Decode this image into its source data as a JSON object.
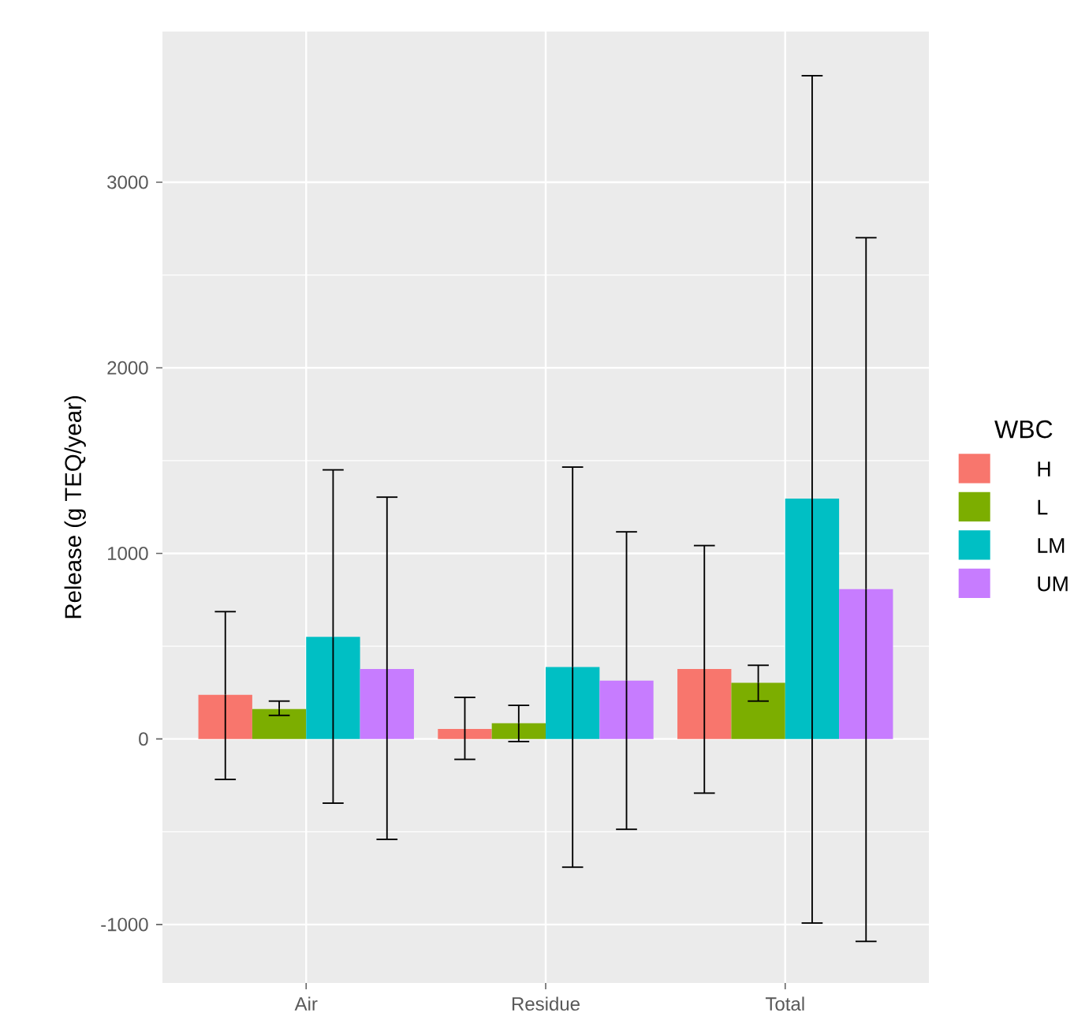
{
  "chart_data": {
    "type": "bar",
    "ylabel": "Release (g TEQ/year)",
    "legend_title": "WBC",
    "categories": [
      "Air",
      "Residue",
      "Total"
    ],
    "series": [
      {
        "name": "H",
        "color": "#f8766d",
        "values": [
          238,
          54,
          377
        ],
        "errors": [
          [
            -218,
            686
          ],
          [
            -110,
            224
          ],
          [
            -292,
            1042
          ]
        ]
      },
      {
        "name": "L",
        "color": "#7cae00",
        "values": [
          161,
          85,
          303
        ],
        "errors": [
          [
            127,
            204
          ],
          [
            -14,
            181
          ],
          [
            204,
            397
          ]
        ]
      },
      {
        "name": "LM",
        "color": "#00bfc4",
        "values": [
          550,
          388,
          1295
        ],
        "errors": [
          [
            -346,
            1450
          ],
          [
            -691,
            1465
          ],
          [
            -992,
            3574
          ]
        ]
      },
      {
        "name": "UM",
        "color": "#c77cff",
        "values": [
          377,
          314,
          807
        ],
        "errors": [
          [
            -541,
            1303
          ],
          [
            -487,
            1116
          ],
          [
            -1091,
            2701
          ]
        ]
      }
    ],
    "ylim": [
      -1315,
      3812
    ],
    "yticks": [
      -1000,
      0,
      1000,
      2000,
      3000
    ],
    "grid": true,
    "legend": "right"
  }
}
